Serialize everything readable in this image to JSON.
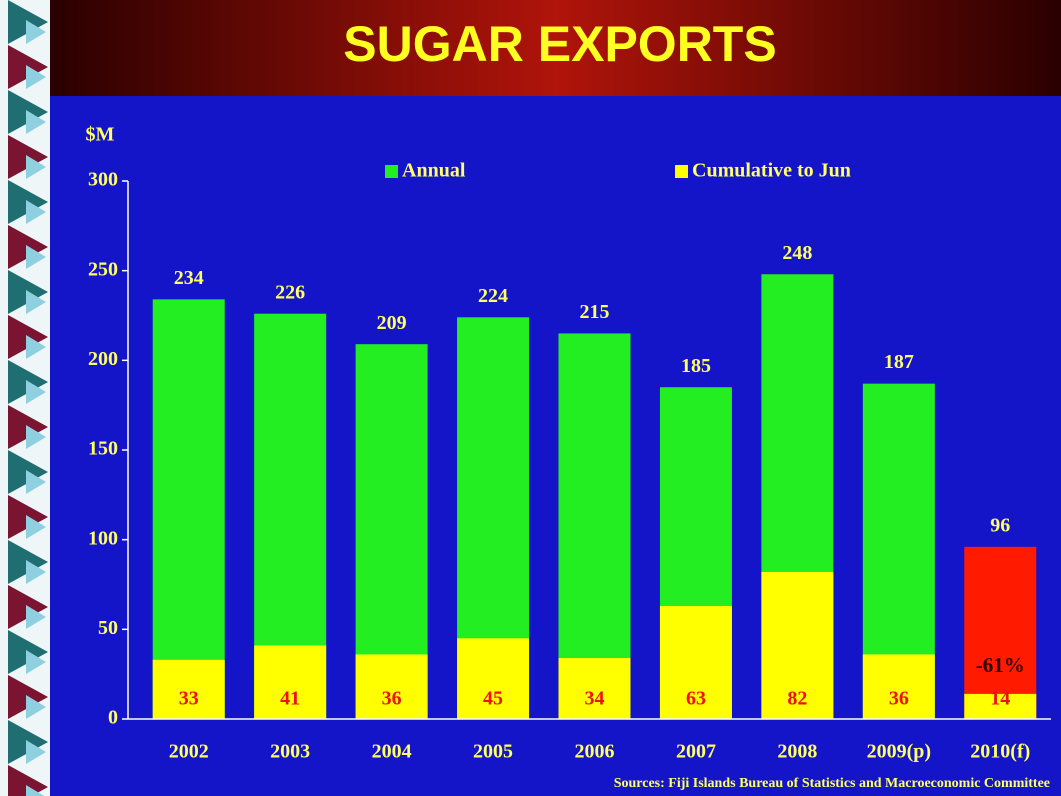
{
  "chart_data": {
    "type": "overlap_bar",
    "title": "SUGAR EXPORTS",
    "y_label": "$M",
    "categories": [
      "2002",
      "2003",
      "2004",
      "2005",
      "2006",
      "2007",
      "2008",
      "2009(p)",
      "2010(f)"
    ],
    "series": [
      {
        "name": "Annual",
        "color": "#22ee22",
        "colors": [
          "#22ee22",
          "#22ee22",
          "#22ee22",
          "#22ee22",
          "#22ee22",
          "#22ee22",
          "#22ee22",
          "#22ee22",
          "#ff1a00"
        ],
        "values": [
          234,
          226,
          209,
          224,
          215,
          185,
          248,
          187,
          96
        ]
      },
      {
        "name": "Cumulative to Jun",
        "color": "#ffff00",
        "values": [
          33,
          41,
          36,
          45,
          34,
          63,
          82,
          36,
          14
        ]
      }
    ],
    "ylim": [
      0,
      300
    ],
    "yticks": [
      0,
      50,
      100,
      150,
      200,
      250,
      300
    ],
    "legend": "top",
    "annotation": "-61%",
    "source": "Sources: Fiji Islands Bureau of Statistics and Macroeconomic Committee"
  }
}
